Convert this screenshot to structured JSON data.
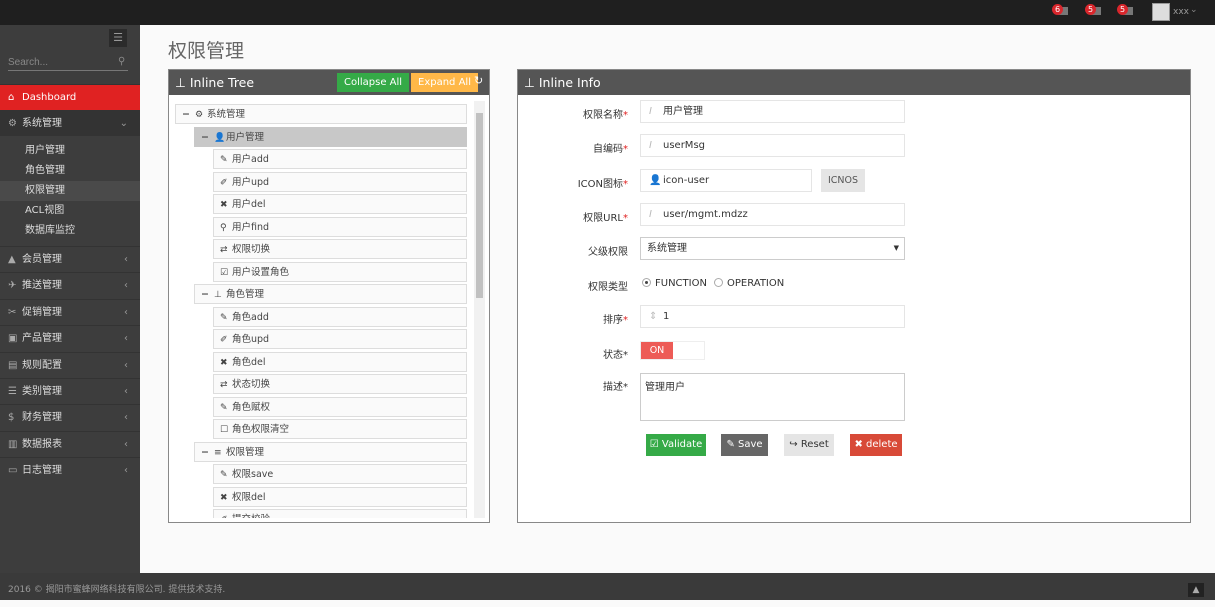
{
  "topbar": {
    "notifications": [
      {
        "count": "6",
        "icon": "bell-icon"
      },
      {
        "count": "5",
        "icon": "envelope-icon"
      },
      {
        "count": "5",
        "icon": "calendar-icon"
      }
    ],
    "username": "xxx"
  },
  "sidebar": {
    "search_placeholder": "Search...",
    "dashboard": "Dashboard",
    "system": "系统管理",
    "sub_items": [
      "用户管理",
      "角色管理",
      "权限管理",
      "ACL视图",
      "数据库监控"
    ],
    "menus": [
      "会员管理",
      "推送管理",
      "促销管理",
      "产品管理",
      "规则配置",
      "类别管理",
      "财务管理",
      "数据报表",
      "日志管理"
    ]
  },
  "page": {
    "title": "权限管理"
  },
  "tree": {
    "title": "Inline Tree",
    "collapse": "Collapse All",
    "expand": "Expand All",
    "nodes": [
      {
        "label": "系统管理",
        "level": 0,
        "icon": "cogs-icon",
        "g": "⚙",
        "toggle": "−"
      },
      {
        "label": "用户管理",
        "level": 1,
        "icon": "user-icon",
        "g": "👤",
        "toggle": "−",
        "selected": true
      },
      {
        "label": "用户add",
        "level": 2,
        "icon": "pencil-icon",
        "g": "✎"
      },
      {
        "label": "用户upd",
        "level": 2,
        "icon": "edit-icon",
        "g": "✐"
      },
      {
        "label": "用户del",
        "level": 2,
        "icon": "times-icon",
        "g": "✖"
      },
      {
        "label": "用户find",
        "level": 2,
        "icon": "search-icon",
        "g": "⚲"
      },
      {
        "label": "权限切换",
        "level": 2,
        "icon": "retweet-icon",
        "g": "⇄"
      },
      {
        "label": "用户设置角色",
        "level": 2,
        "icon": "check-square-icon",
        "g": "☑"
      },
      {
        "label": "角色管理",
        "level": 1,
        "icon": "sitemap-icon",
        "g": "⊥",
        "toggle": "−"
      },
      {
        "label": "角色add",
        "level": 2,
        "icon": "pencil-icon",
        "g": "✎"
      },
      {
        "label": "角色upd",
        "level": 2,
        "icon": "edit-icon",
        "g": "✐"
      },
      {
        "label": "角色del",
        "level": 2,
        "icon": "times-icon",
        "g": "✖"
      },
      {
        "label": "状态切换",
        "level": 2,
        "icon": "retweet-icon",
        "g": "⇄"
      },
      {
        "label": "角色赋权",
        "level": 2,
        "icon": "pencil-icon",
        "g": "✎"
      },
      {
        "label": "角色权限清空",
        "level": 2,
        "icon": "square-icon",
        "g": "☐"
      },
      {
        "label": "权限管理",
        "level": 1,
        "icon": "list-icon",
        "g": "≡",
        "toggle": "−"
      },
      {
        "label": "权限save",
        "level": 2,
        "icon": "pencil-icon",
        "g": "✎"
      },
      {
        "label": "权限del",
        "level": 2,
        "icon": "times-icon",
        "g": "✖"
      },
      {
        "label": "提交校验",
        "level": 2,
        "icon": "edit-icon",
        "g": "✐"
      }
    ]
  },
  "info": {
    "title": "Inline Info",
    "name_label": "权限名称",
    "name_value": "用户管理",
    "code_label": "自编码",
    "code_value": "userMsg",
    "icon_label": "ICON图标",
    "icon_value": "icon-user",
    "icnos": "ICNOS",
    "url_label": "权限URL",
    "url_value": "user/mgmt.mdzz",
    "parent_label": "父级权限",
    "parent_value": "系统管理",
    "type_label": "权限类型",
    "type_options": [
      "FUNCTION",
      "OPERATION"
    ],
    "type_selected": "FUNCTION",
    "order_label": "排序",
    "order_value": "1",
    "status_label": "状态*",
    "status_value": "ON",
    "desc_label": "描述*",
    "desc_value": "管理用户",
    "validate": "Validate",
    "save": "Save",
    "reset": "Reset",
    "delete": "delete"
  },
  "colors": {
    "accent": "#e02222",
    "validate": "#35aa47",
    "save": "#666666",
    "reset": "#e5e5e5",
    "delete": "#d84a38",
    "expand": "#ffb848"
  },
  "footer": {
    "text": "2016 © 揭阳市蜜蜂网络科技有限公司. 提供技术支持."
  }
}
